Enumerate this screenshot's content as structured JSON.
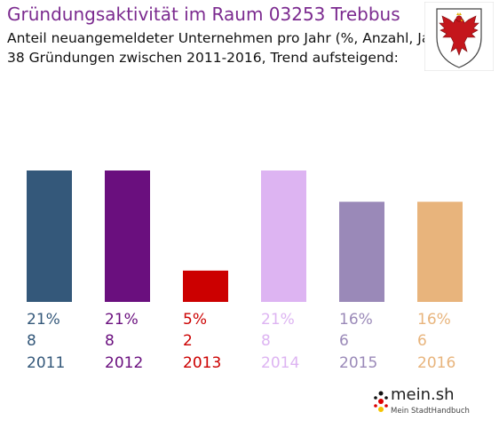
{
  "header": {
    "title": "Gründungsaktivität im Raum 03253 Trebbus",
    "subtitle_1": "Anteil neuangemeldeter Unternehmen pro Jahr (%, Anzahl, Jahr)",
    "subtitle_2": "38 Gründungen zwischen 2011-2016, Trend aufsteigend:"
  },
  "crest": {
    "icon": "brandenburg-eagle-crest-icon"
  },
  "logo": {
    "main": "mein.sh",
    "sub": "Mein StadtHandbuch"
  },
  "chart_data": {
    "type": "bar",
    "title": "Gründungsaktivität im Raum 03253 Trebbus",
    "categories": [
      "2011",
      "2012",
      "2013",
      "2014",
      "2015",
      "2016"
    ],
    "values": [
      21,
      21,
      5,
      21,
      16,
      16
    ],
    "percent_labels": [
      "21%",
      "21%",
      "5%",
      "21%",
      "16%",
      "16%"
    ],
    "counts": [
      "8",
      "8",
      "2",
      "8",
      "6",
      "6"
    ],
    "colors": [
      "#34587a",
      "#6a0f7e",
      "#cc0000",
      "#ddb4f2",
      "#9a89b8",
      "#e8b47c"
    ],
    "ylim": [
      0,
      21
    ],
    "grid": false,
    "legend": "none"
  }
}
